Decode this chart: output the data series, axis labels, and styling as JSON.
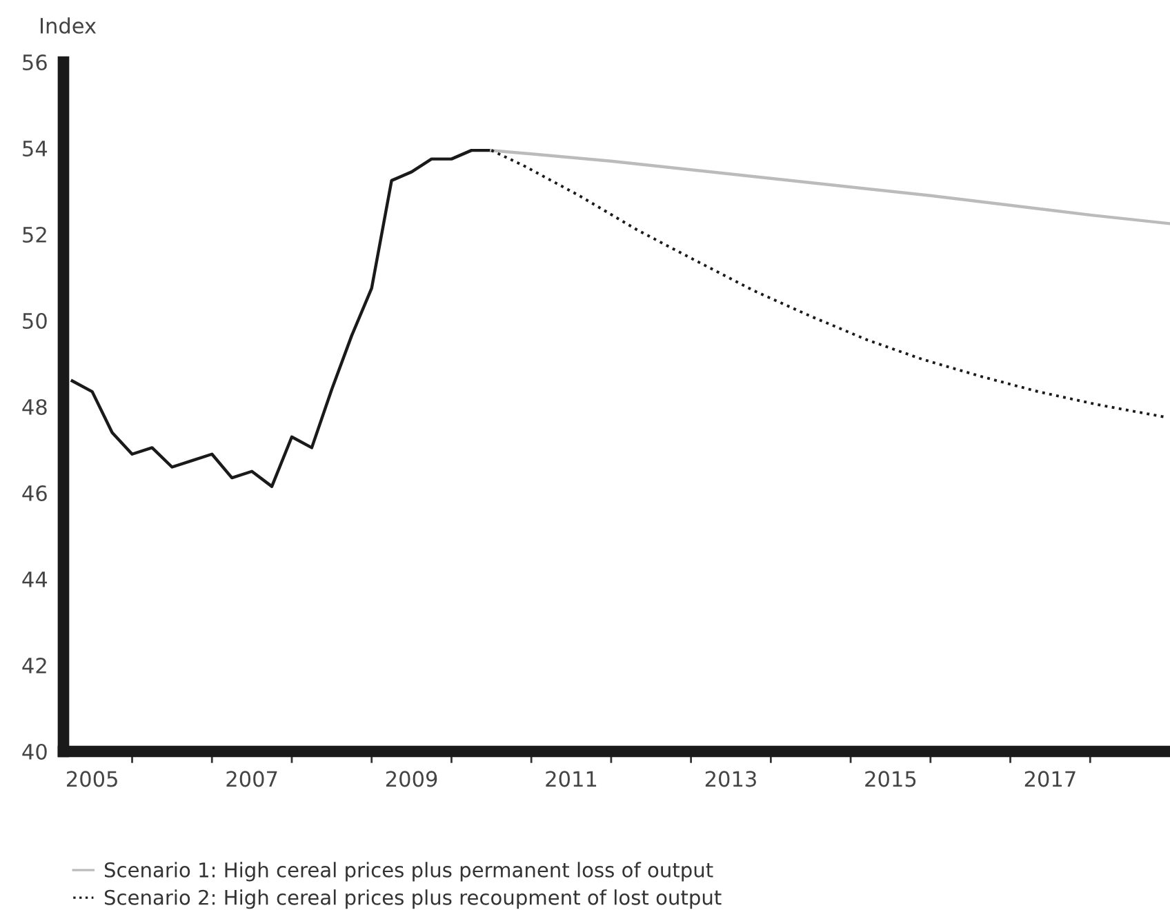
{
  "chart_data": {
    "type": "line",
    "ylabel": "Index",
    "xlim": [
      2005.14,
      2019.0
    ],
    "ylim": [
      40,
      56
    ],
    "yticks": [
      40,
      42,
      44,
      46,
      48,
      50,
      52,
      54,
      56
    ],
    "xticks": [
      {
        "value": 2005.5,
        "label": "2005"
      },
      {
        "value": 2006,
        "label": null
      },
      {
        "value": 2007,
        "label": null
      },
      {
        "value": 2007.5,
        "label": "2007"
      },
      {
        "value": 2008,
        "label": null
      },
      {
        "value": 2009,
        "label": null
      },
      {
        "value": 2009.5,
        "label": "2009"
      },
      {
        "value": 2010,
        "label": null
      },
      {
        "value": 2011,
        "label": null
      },
      {
        "value": 2011.5,
        "label": "2011"
      },
      {
        "value": 2012,
        "label": null
      },
      {
        "value": 2013,
        "label": null
      },
      {
        "value": 2013.5,
        "label": "2013"
      },
      {
        "value": 2014,
        "label": null
      },
      {
        "value": 2015,
        "label": null
      },
      {
        "value": 2015.5,
        "label": "2015"
      },
      {
        "value": 2016,
        "label": null
      },
      {
        "value": 2017,
        "label": null
      },
      {
        "value": 2017.5,
        "label": "2017"
      },
      {
        "value": 2018,
        "label": null
      }
    ],
    "grid": false,
    "legend": "bottom",
    "marker": "none",
    "series": [
      {
        "color": "#1a1a1a",
        "line_style": "solid",
        "x": [
          2005.25,
          2005.5,
          2005.75,
          2006.0,
          2006.25,
          2006.5,
          2006.75,
          2007.0,
          2007.25,
          2007.5,
          2007.75,
          2008.0,
          2008.25,
          2008.5,
          2008.75,
          2009.0,
          2009.25,
          2009.5,
          2009.75,
          2010.0,
          2010.25,
          2010.5
        ],
        "values": [
          48.6,
          48.35,
          47.4,
          46.9,
          47.05,
          46.6,
          46.75,
          46.9,
          46.35,
          46.5,
          46.15,
          47.3,
          47.05,
          48.4,
          49.65,
          50.75,
          53.25,
          53.45,
          53.75,
          53.75,
          53.95,
          53.95
        ]
      },
      {
        "name": "Scenario 1: High cereal prices plus permanent loss of output",
        "color": "#bbbbbb",
        "line_style": "solid",
        "x": [
          2010.5,
          2012.0,
          2014.0,
          2016.0,
          2018.0,
          2019.0
        ],
        "values": [
          53.95,
          53.7,
          53.3,
          52.9,
          52.45,
          52.25
        ]
      },
      {
        "name": "Scenario 2: High cereal prices plus recoupment of lost output",
        "color": "#1a1a1a",
        "line_style": "dotted",
        "x": [
          2010.5,
          2010.9,
          2011.6,
          2012.33,
          2013.05,
          2013.78,
          2014.5,
          2015.21,
          2015.9,
          2016.64,
          2017.35,
          2018.09,
          2018.97
        ],
        "values": [
          53.95,
          53.6,
          52.9,
          52.1,
          51.4,
          50.7,
          50.1,
          49.55,
          49.1,
          48.7,
          48.35,
          48.05,
          47.75
        ]
      }
    ]
  }
}
